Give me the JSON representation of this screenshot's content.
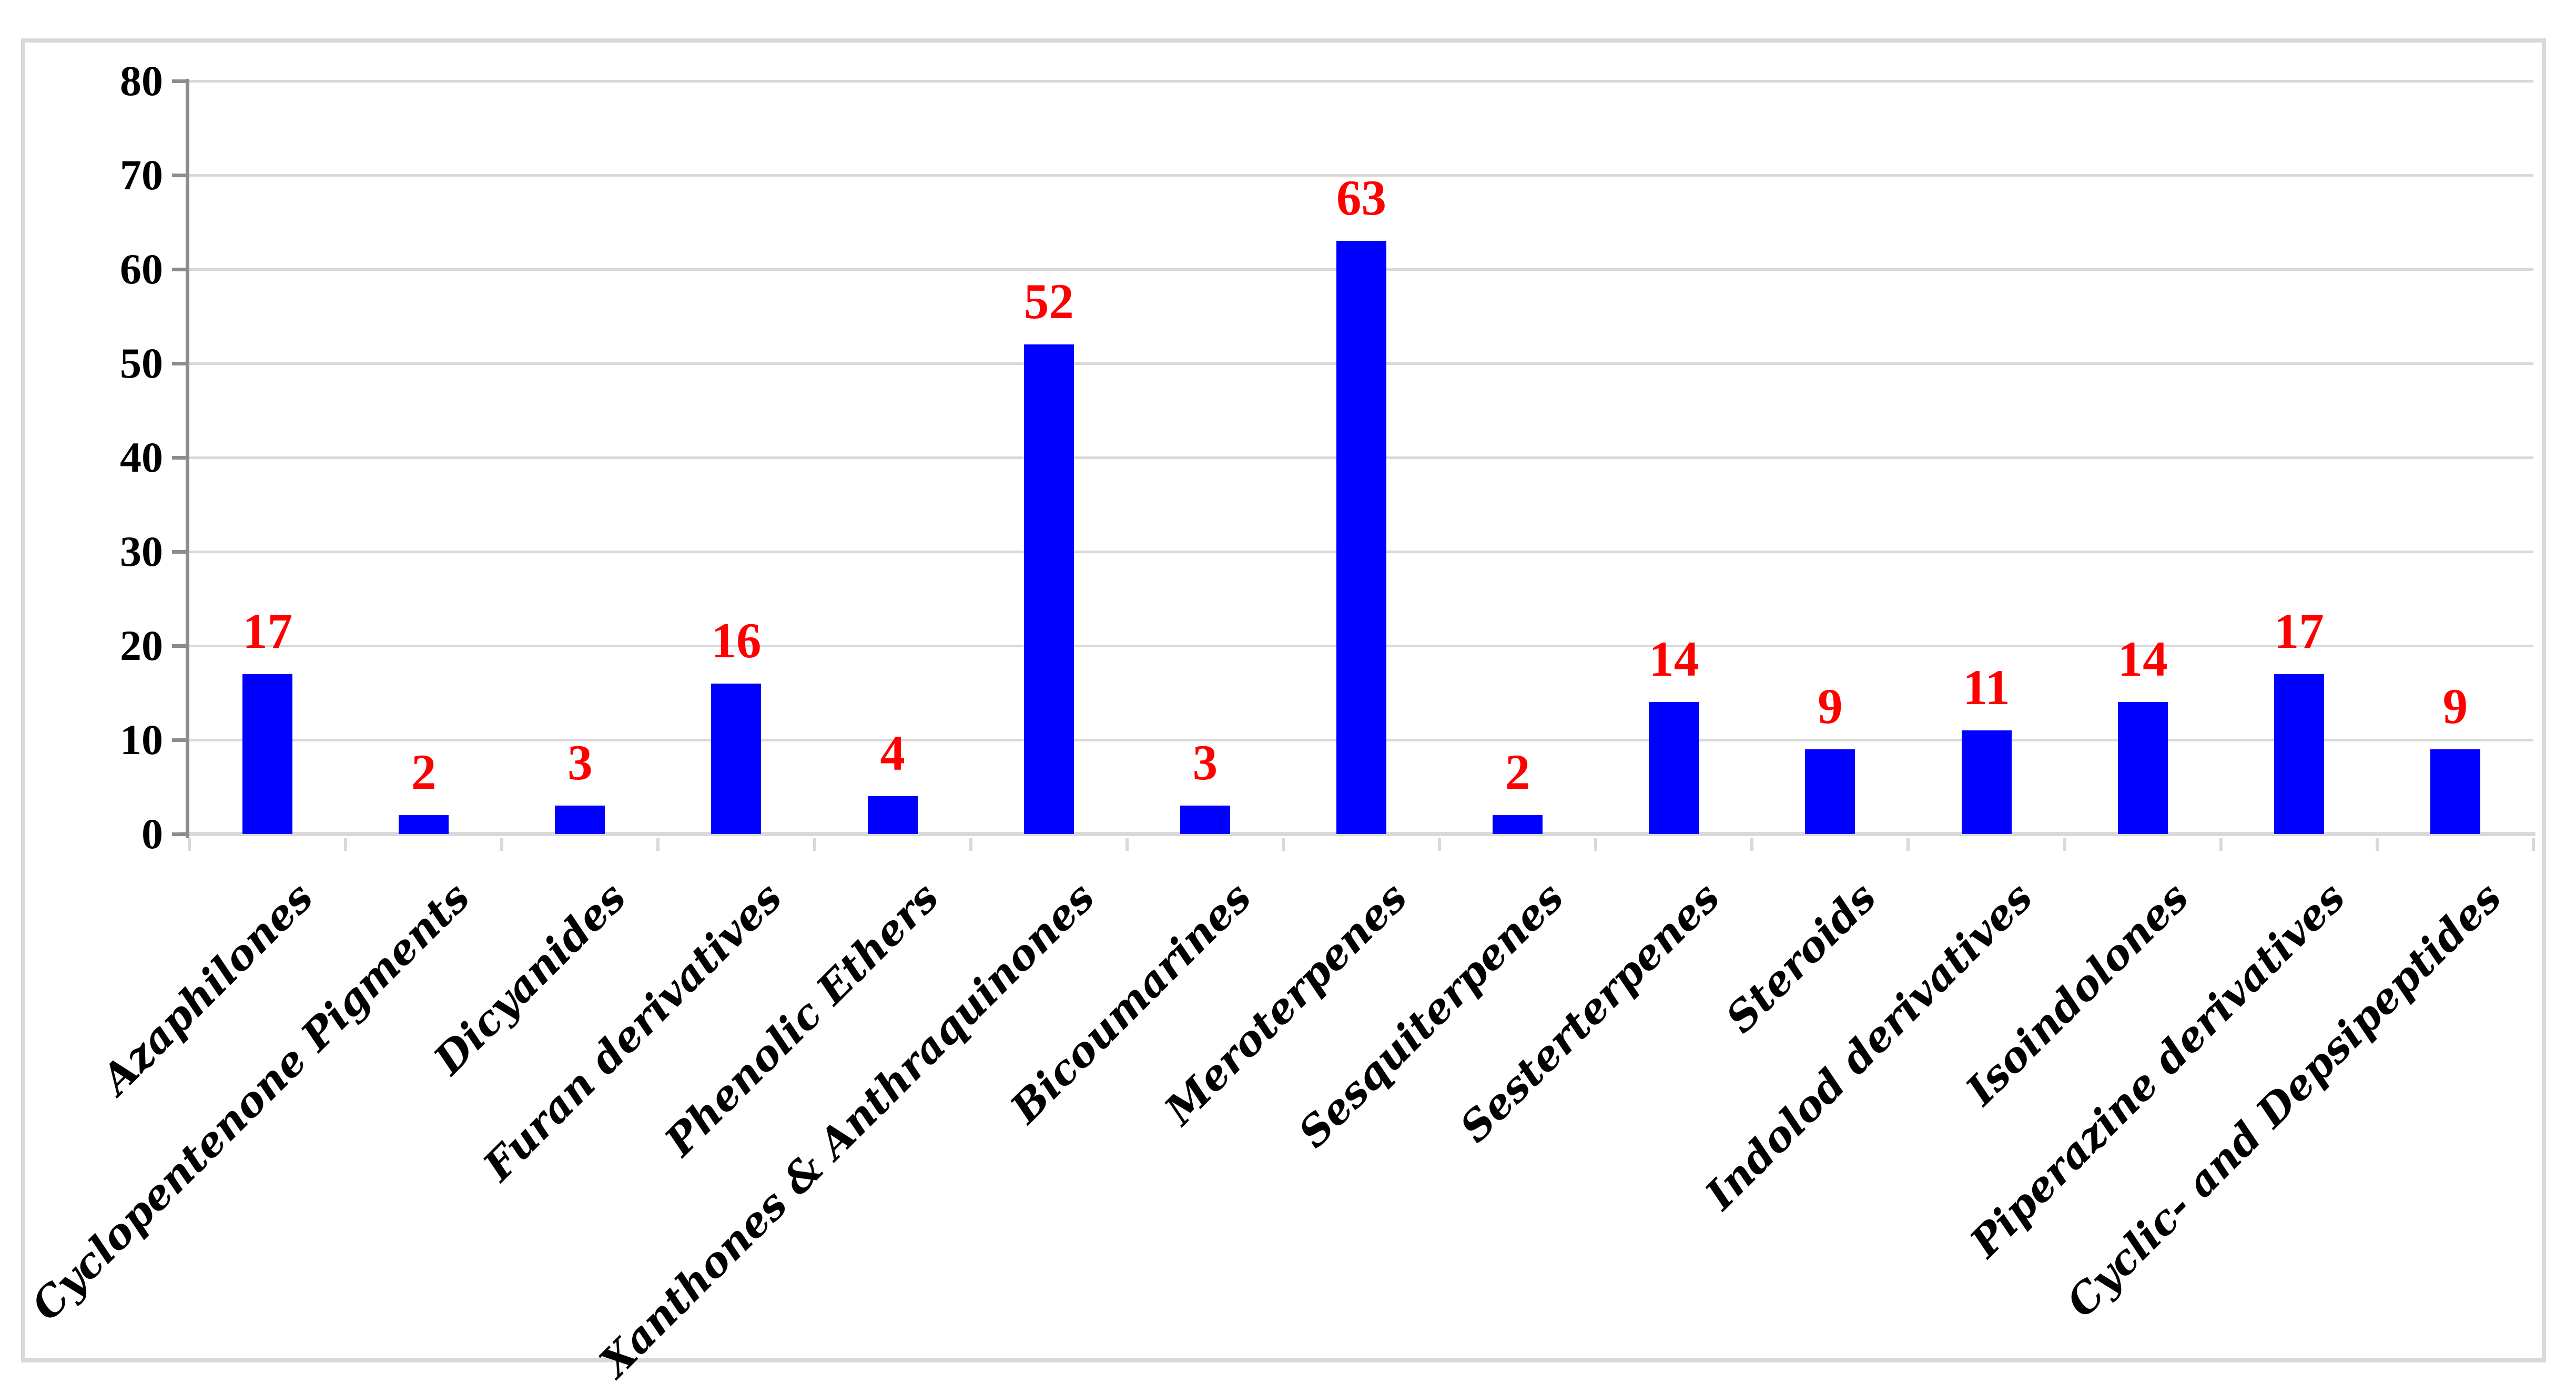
{
  "chart_data": {
    "type": "bar",
    "title": "",
    "categories": [
      "Azaphilones",
      "Cyclopentenone Pigments",
      "Dicyanides",
      "Furan derivatives",
      "Phenolic Ethers",
      "Xanthones & Anthraquinones",
      "Bicoumarines",
      "Meroterpenes",
      "Sesquiterpenes",
      "Sesterterpenes",
      "Steroids",
      "Indolod derivatives",
      "Isoindolones",
      "Piperazine derivatives",
      "Cyclic- and Depsipeptides"
    ],
    "values": [
      17,
      2,
      3,
      16,
      4,
      52,
      3,
      63,
      2,
      14,
      9,
      11,
      14,
      17,
      9
    ],
    "xlabel": "",
    "ylabel": "",
    "ylim": [
      0,
      80
    ],
    "yticks": [
      0,
      10,
      20,
      30,
      40,
      50,
      60,
      70,
      80
    ],
    "grid": true,
    "legend_position": "none",
    "bar_labels_shown": true,
    "colors": {
      "bar": "#0000FF",
      "value_label": "#FF0000",
      "gridline": "#D9D9D9",
      "frame_border": "#D9D9D9",
      "baseline": "#D9D9D9",
      "value_axis": "#8C8C8C",
      "tick_label": "#000000",
      "category_label": "#000000",
      "background": "#FFFFFF"
    }
  }
}
